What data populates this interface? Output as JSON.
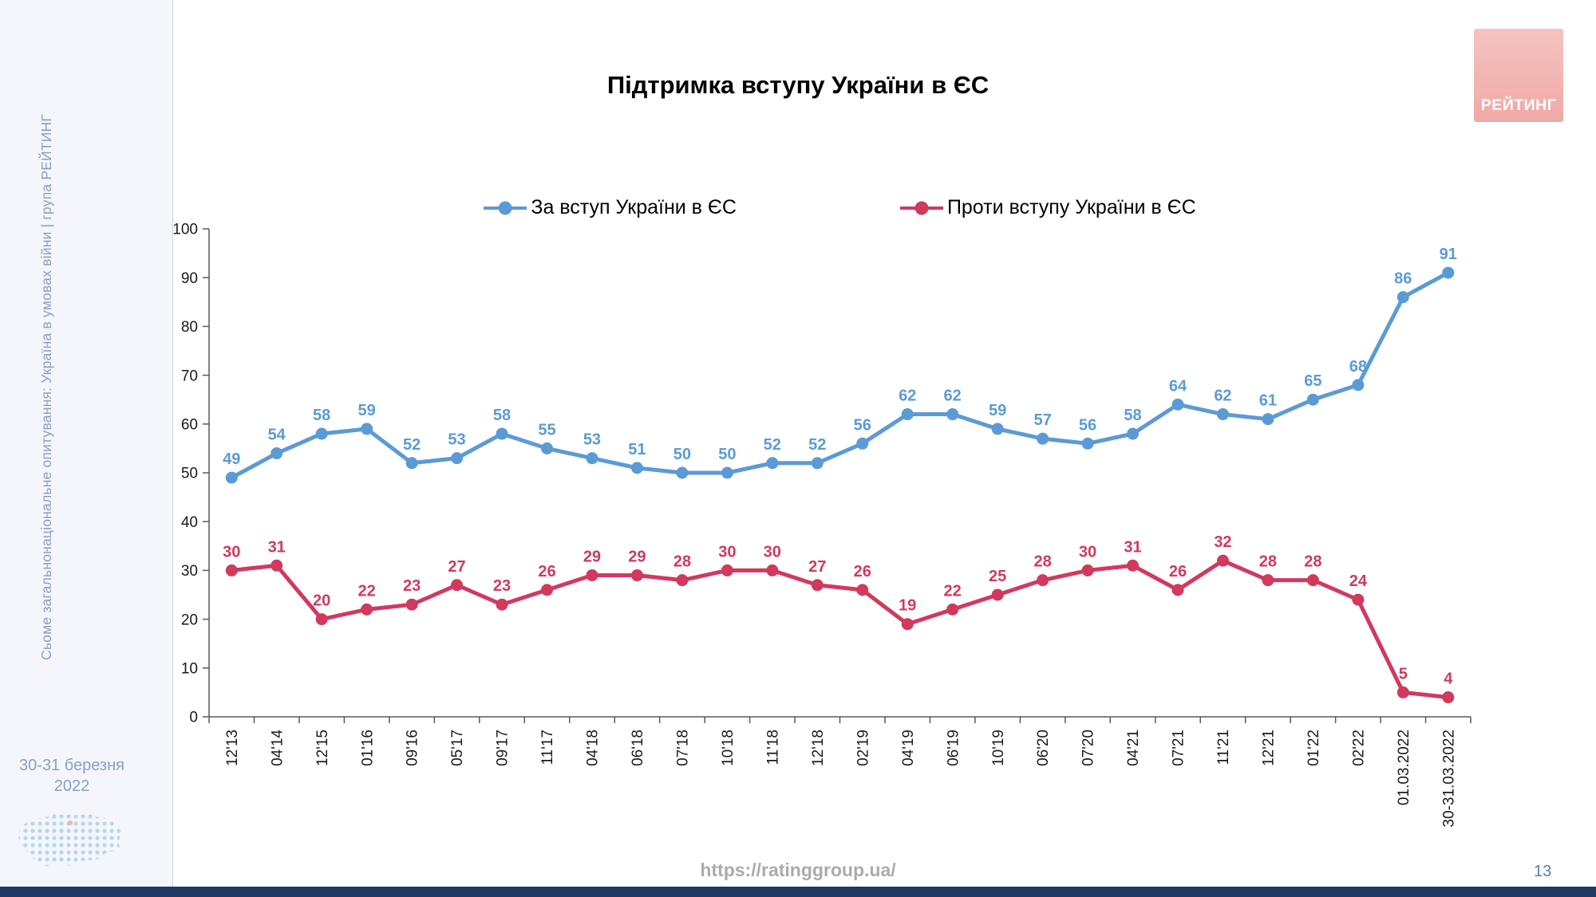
{
  "sidebar": {
    "vertical_text": "Сьоме загальнонаціональне опитування: Україна в умовах війни | група РЕЙТИНГ",
    "survey_date_line1": "30-31 березня",
    "survey_date_line2": "2022"
  },
  "logo": {
    "label": "РЕЙТИНГ"
  },
  "footer": {
    "url": "https://ratinggroup.ua/",
    "page_number": "13"
  },
  "chart_data": {
    "type": "line",
    "title": "Підтримка вступу України в ЄС",
    "categories": [
      "12'13",
      "04'14",
      "12'15",
      "01'16",
      "09'16",
      "05'17",
      "09'17",
      "11'17",
      "04'18",
      "06'18",
      "07'18",
      "10'18",
      "11'18",
      "12'18",
      "02'19",
      "04'19",
      "06'19",
      "10'19",
      "06'20",
      "07'20",
      "04'21",
      "07'21",
      "11'21",
      "12'21",
      "01'22",
      "02'22",
      "01.03.2022",
      "30-31.03.2022"
    ],
    "series": [
      {
        "name": "За вступ України в ЄС",
        "color": "#5B9BD5",
        "values": [
          49,
          54,
          58,
          59,
          52,
          53,
          58,
          55,
          53,
          51,
          50,
          50,
          52,
          52,
          56,
          62,
          62,
          59,
          57,
          56,
          58,
          64,
          62,
          61,
          65,
          68,
          86,
          91
        ]
      },
      {
        "name": "Проти вступу України в ЄС",
        "color": "#D2395F",
        "values": [
          30,
          31,
          20,
          22,
          23,
          27,
          23,
          26,
          29,
          29,
          28,
          30,
          30,
          27,
          26,
          19,
          22,
          25,
          28,
          30,
          31,
          26,
          32,
          28,
          28,
          24,
          5,
          4
        ]
      }
    ],
    "ylim": [
      0,
      100
    ],
    "ytick_step": 10,
    "grid": false,
    "legend_position": "top",
    "xlabel": "",
    "ylabel": "",
    "axis_color": "#595959",
    "tick_label_color": "#1a1a1a"
  }
}
